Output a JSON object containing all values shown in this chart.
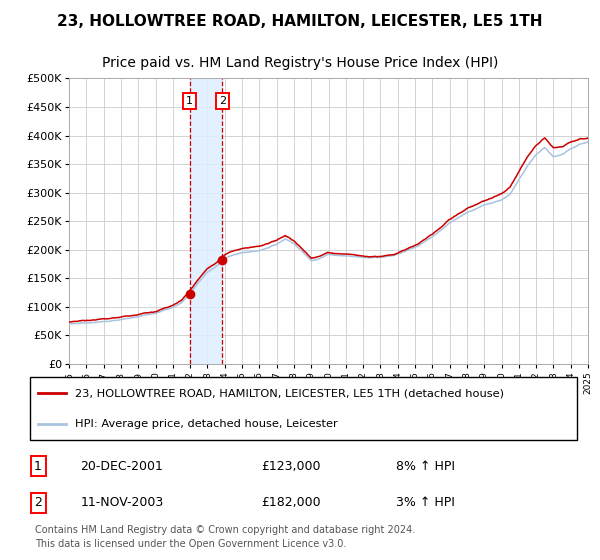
{
  "title": "23, HOLLOWTREE ROAD, HAMILTON, LEICESTER, LE5 1TH",
  "subtitle": "Price paid vs. HM Land Registry's House Price Index (HPI)",
  "ylim": [
    0,
    500000
  ],
  "yticks": [
    0,
    50000,
    100000,
    150000,
    200000,
    250000,
    300000,
    350000,
    400000,
    450000,
    500000
  ],
  "ytick_labels": [
    "£0",
    "£50K",
    "£100K",
    "£150K",
    "£200K",
    "£250K",
    "£300K",
    "£350K",
    "£400K",
    "£450K",
    "£500K"
  ],
  "year_start": 1995,
  "year_end": 2025,
  "hpi_line_color": "#aac4e0",
  "price_line_color": "#cc0000",
  "marker_color": "#cc0000",
  "transaction1_date": 2001.97,
  "transaction1_price": 123000,
  "transaction1_label": "1",
  "transaction1_display": "20-DEC-2001",
  "transaction1_amount": "£123,000",
  "transaction1_hpi": "8% ↑ HPI",
  "transaction2_date": 2003.87,
  "transaction2_price": 182000,
  "transaction2_label": "2",
  "transaction2_display": "11-NOV-2003",
  "transaction2_amount": "£182,000",
  "transaction2_hpi": "3% ↑ HPI",
  "legend_line1": "23, HOLLOWTREE ROAD, HAMILTON, LEICESTER, LE5 1TH (detached house)",
  "legend_line2": "HPI: Average price, detached house, Leicester",
  "footer": "Contains HM Land Registry data © Crown copyright and database right 2024.\nThis data is licensed under the Open Government Licence v3.0.",
  "bg_color": "#ffffff",
  "plot_bg_color": "#ffffff",
  "grid_color": "#cccccc",
  "shaded_region_color": "#ddeeff",
  "vline_color": "#cc0000",
  "title_color": "#000000",
  "title_fontsize": 11,
  "subtitle_fontsize": 10,
  "tick_fontsize": 8
}
